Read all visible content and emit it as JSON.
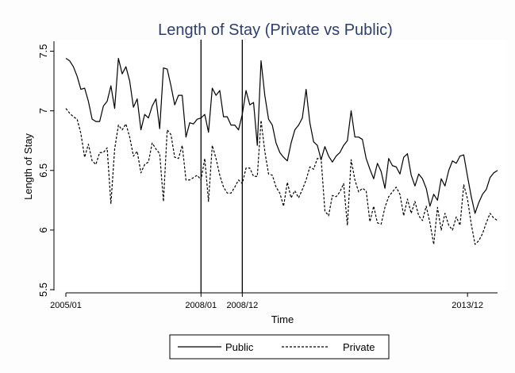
{
  "chart_data": {
    "type": "line",
    "title": "Length of Stay (Private vs Public)",
    "xlabel": "Time",
    "ylabel": "Length of Stay",
    "xlim": [
      "2005/01",
      "2013/12"
    ],
    "ylim": [
      5.5,
      7.55
    ],
    "yticks": [
      5.5,
      6,
      6.5,
      7,
      7.5
    ],
    "ytick_labels": [
      "5.5",
      "6",
      "6.5",
      "7",
      "7.5"
    ],
    "xticks": [
      "2005/01",
      "2008/01",
      "2008/12",
      "2013/12"
    ],
    "vertical_lines": [
      "2008/01",
      "2008/12"
    ],
    "grid": false,
    "legend_position": "bottom",
    "series": [
      {
        "name": "Public",
        "line_style": "solid",
        "color": "#000000",
        "values": [
          7.44,
          7.42,
          7.37,
          7.29,
          7.18,
          7.19,
          7.08,
          6.93,
          6.91,
          6.91,
          7.04,
          7.08,
          7.21,
          7.02,
          7.44,
          7.31,
          7.37,
          7.25,
          7.03,
          7.1,
          6.84,
          6.97,
          6.94,
          7.04,
          7.1,
          6.85,
          7.36,
          7.35,
          7.21,
          7.05,
          7.13,
          7.13,
          6.78,
          6.9,
          6.89,
          6.93,
          6.94,
          6.97,
          6.82,
          7.19,
          7.13,
          7.17,
          6.95,
          6.95,
          6.88,
          6.88,
          6.84,
          6.97,
          7.17,
          7.05,
          7.07,
          6.71,
          7.42,
          7.13,
          6.93,
          6.88,
          6.73,
          6.65,
          6.61,
          6.58,
          6.73,
          6.84,
          6.88,
          6.94,
          7.18,
          6.9,
          6.74,
          6.71,
          6.59,
          6.7,
          6.62,
          6.57,
          6.62,
          6.65,
          6.71,
          6.75,
          7.0,
          6.78,
          6.78,
          6.76,
          6.6,
          6.51,
          6.43,
          6.56,
          6.49,
          6.35,
          6.6,
          6.54,
          6.53,
          6.47,
          6.61,
          6.64,
          6.46,
          6.37,
          6.47,
          6.43,
          6.35,
          6.2,
          6.3,
          6.25,
          6.43,
          6.37,
          6.5,
          6.58,
          6.56,
          6.62,
          6.63,
          6.45,
          6.28,
          6.14,
          6.23,
          6.3,
          6.34,
          6.44,
          6.48,
          6.5
        ]
      },
      {
        "name": "Private",
        "line_style": "dashed",
        "color": "#000000",
        "values": [
          7.02,
          6.98,
          6.95,
          6.93,
          6.81,
          6.61,
          6.72,
          6.58,
          6.55,
          6.65,
          6.65,
          6.69,
          6.22,
          6.68,
          6.88,
          6.84,
          6.89,
          6.78,
          6.62,
          6.66,
          6.48,
          6.55,
          6.57,
          6.73,
          6.68,
          6.64,
          6.24,
          6.84,
          6.8,
          6.61,
          6.6,
          6.71,
          6.42,
          6.42,
          6.44,
          6.46,
          6.42,
          6.6,
          6.24,
          6.71,
          6.6,
          6.46,
          6.36,
          6.31,
          6.31,
          6.36,
          6.42,
          6.39,
          6.52,
          6.52,
          6.45,
          6.45,
          6.92,
          6.66,
          6.47,
          6.46,
          6.36,
          6.31,
          6.2,
          6.4,
          6.27,
          6.33,
          6.27,
          6.34,
          6.42,
          6.53,
          6.51,
          6.6,
          6.6,
          6.16,
          6.12,
          6.29,
          6.28,
          6.32,
          6.39,
          6.04,
          6.59,
          6.42,
          6.32,
          6.35,
          6.33,
          6.07,
          6.2,
          6.06,
          6.05,
          6.19,
          6.28,
          6.32,
          6.36,
          6.3,
          6.12,
          6.26,
          6.14,
          6.24,
          6.12,
          6.08,
          6.2,
          6.06,
          5.88,
          6.19,
          6.0,
          6.14,
          6.04,
          6.0,
          6.11,
          6.04,
          6.38,
          6.26,
          6.05,
          5.88,
          5.91,
          5.97,
          6.06,
          6.14,
          6.1,
          6.08
        ]
      }
    ]
  },
  "colors": {
    "title": "#2e3f6e",
    "line": "#000000",
    "background": "#fdfdfd",
    "plot_background": "#ffffff"
  }
}
